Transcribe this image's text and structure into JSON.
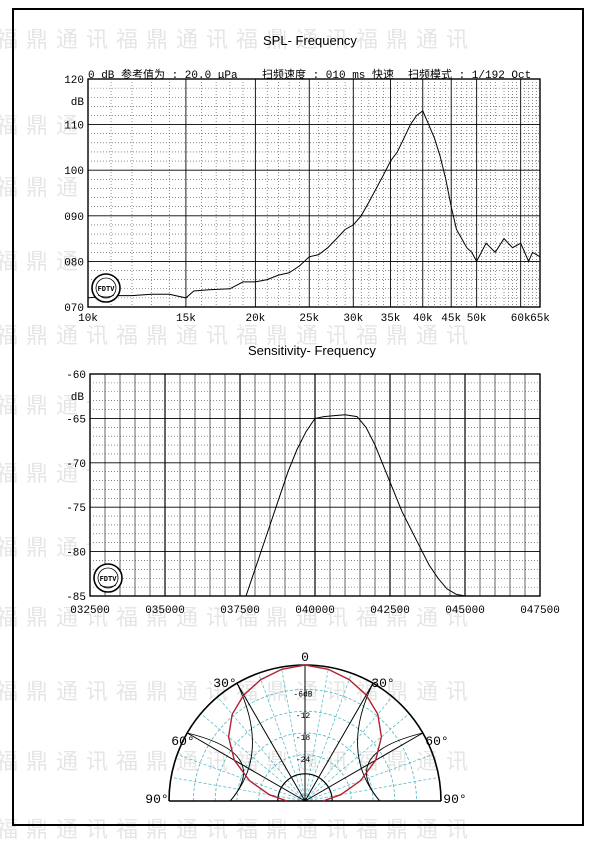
{
  "watermark": "福鼎通讯福鼎通讯福鼎通讯福鼎通讯",
  "spl_header": {
    "ref_label": "0 dB 参考值为 :  20.0 μPa",
    "sweep_label": "扫频速度 : 010 ms 快速",
    "mode_label": "扫频模式 : 1/192 Oct"
  },
  "logo_text": "FDTV",
  "chart_data": [
    {
      "type": "line",
      "title": "SPL- Frequency",
      "ylabel": "dB",
      "yticks": [
        "120",
        "110",
        "100",
        "090",
        "080",
        "070"
      ],
      "ylim": [
        70,
        120
      ],
      "xscale": "log",
      "xlim": [
        10000,
        65000
      ],
      "xticks": [
        {
          "v": 10000,
          "label": "10k"
        },
        {
          "v": 15000,
          "label": "15k"
        },
        {
          "v": 20000,
          "label": "20k"
        },
        {
          "v": 25000,
          "label": "25k"
        },
        {
          "v": 30000,
          "label": "30k"
        },
        {
          "v": 35000,
          "label": "35k"
        },
        {
          "v": 40000,
          "label": "40k"
        },
        {
          "v": 45000,
          "label": "45k"
        },
        {
          "v": 50000,
          "label": "50k"
        },
        {
          "v": 60000,
          "label": "60k"
        },
        {
          "v": 65000,
          "label": "65k"
        }
      ],
      "x": [
        10000,
        11000,
        12000,
        13000,
        14000,
        15000,
        15500,
        16500,
        18000,
        19000,
        20000,
        21000,
        22000,
        23000,
        24000,
        25000,
        26000,
        27000,
        28000,
        29000,
        30000,
        31000,
        32000,
        33000,
        34000,
        35000,
        36000,
        37000,
        38000,
        39000,
        40000,
        41000,
        42000,
        43000,
        44000,
        45000,
        46000,
        47000,
        48000,
        49000,
        50000,
        52000,
        54000,
        56000,
        58000,
        60000,
        62000,
        63000,
        65000
      ],
      "y": [
        72,
        72.5,
        72.5,
        72.8,
        72.8,
        72,
        73.5,
        73.8,
        74,
        75.5,
        75.5,
        76,
        77,
        77.5,
        79,
        81,
        81.5,
        83,
        85,
        87,
        88,
        90,
        93,
        96,
        99,
        102,
        104,
        107,
        110,
        112,
        113,
        110,
        107,
        103,
        98,
        92,
        87,
        85,
        83,
        82,
        80,
        84,
        82,
        85,
        83,
        84,
        80,
        82,
        81
      ]
    },
    {
      "type": "line",
      "title": "Sensitivity- Frequency",
      "ylabel": "dB",
      "yticks": [
        {
          "v": -60,
          "label": "-60"
        },
        {
          "v": -65,
          "label": "-65"
        },
        {
          "v": -70,
          "label": "-70"
        },
        {
          "v": -75,
          "label": "-75"
        },
        {
          "v": -80,
          "label": "-80"
        },
        {
          "v": -85,
          "label": "-85"
        }
      ],
      "ylim": [
        -85,
        -60
      ],
      "xlim": [
        32500,
        47500
      ],
      "xticks": [
        {
          "v": 32500,
          "label": "032500"
        },
        {
          "v": 35000,
          "label": "035000"
        },
        {
          "v": 37500,
          "label": "037500"
        },
        {
          "v": 40000,
          "label": "040000"
        },
        {
          "v": 42500,
          "label": "042500"
        },
        {
          "v": 45000,
          "label": "045000"
        },
        {
          "v": 47500,
          "label": "047500"
        }
      ],
      "x": [
        37700,
        37900,
        38200,
        38500,
        38800,
        39100,
        39400,
        39700,
        40000,
        40300,
        40600,
        41000,
        41400,
        41700,
        42000,
        42300,
        42600,
        42900,
        43200,
        43500,
        43800,
        44100,
        44400,
        44700,
        45000
      ],
      "y": [
        -85,
        -83,
        -80,
        -77,
        -74,
        -71,
        -68.5,
        -66.5,
        -65,
        -64.8,
        -64.7,
        -64.6,
        -64.8,
        -66,
        -68,
        -70.5,
        -73,
        -75.5,
        -77.5,
        -79.5,
        -81.5,
        -83,
        -84.2,
        -84.8,
        -85
      ]
    },
    {
      "type": "polar",
      "angle_labels": [
        "0",
        "30°",
        "30°",
        "60°",
        "60°",
        "90°",
        "90°"
      ],
      "ring_labels": [
        "-6dB",
        "-12",
        "-18",
        "-24"
      ],
      "pattern": [
        {
          "angle": 0,
          "db": 0
        },
        {
          "angle": 10,
          "db": -0.5
        },
        {
          "angle": 20,
          "db": -1.5
        },
        {
          "angle": 30,
          "db": -3
        },
        {
          "angle": 40,
          "db": -5
        },
        {
          "angle": 50,
          "db": -8
        },
        {
          "angle": 60,
          "db": -12
        },
        {
          "angle": 70,
          "db": -17
        },
        {
          "angle": 80,
          "db": -22
        },
        {
          "angle": 90,
          "db": -26
        }
      ]
    }
  ]
}
